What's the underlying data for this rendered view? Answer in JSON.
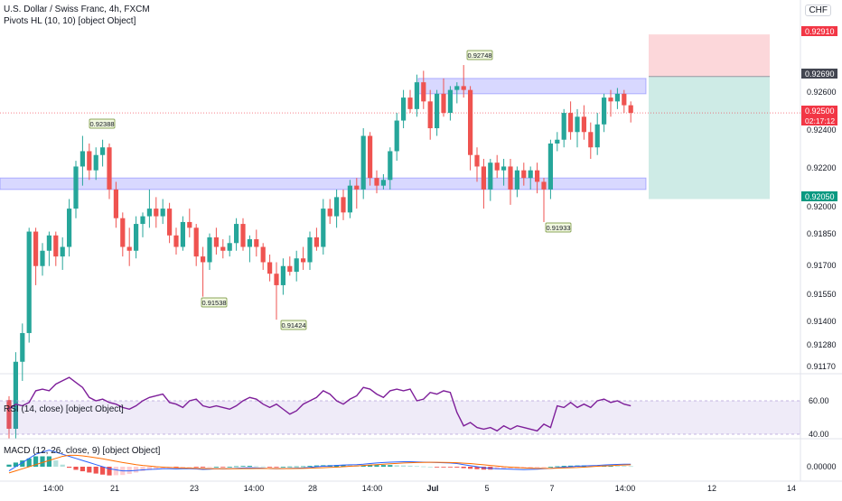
{
  "header": {
    "title": "U.S. Dollar / Swiss Franc, 4h, FXCM",
    "pivot_legend": "Pivots HL (10, 10) [object Object]",
    "currency": "CHF"
  },
  "indicators": {
    "rsi_legend": "RSI (14, close) [object Object]",
    "macd_legend": "MACD (12, 26, close, 9) [object Object]"
  },
  "chart_data": {
    "type": "candlestick",
    "price_axis": {
      "ticks": [
        "0.92690",
        "0.92600",
        "0.92500",
        "0.92400",
        "0.92200",
        "0.92050",
        "0.92000",
        "0.91850",
        "0.91700",
        "0.91550",
        "0.91400",
        "0.91280",
        "0.91170"
      ],
      "highlight_labels": [
        {
          "value": "0.92910",
          "color": "#f23645"
        },
        {
          "value": "0.92690",
          "color": "#434651"
        },
        {
          "value": "0.92500",
          "color": "#f23645",
          "countdown": "02:17:12"
        },
        {
          "value": "0.92050",
          "color": "#089981"
        }
      ]
    },
    "time_axis": {
      "labels": [
        "14:00",
        "21",
        "23",
        "14:00",
        "28",
        "14:00",
        "Jul",
        "5",
        "7",
        "14:00",
        "12",
        "14"
      ]
    },
    "pivot_labels": [
      "0.92388",
      "0.91538",
      "0.91424",
      "0.92748",
      "0.91933"
    ],
    "zones": {
      "resistance": {
        "from": 0.926,
        "to": 0.9268
      },
      "support": {
        "from": 0.921,
        "to": 0.9216
      }
    },
    "position": {
      "entry": 0.9269,
      "stop": 0.9291,
      "target": 0.9205,
      "stop_color": "#f23645",
      "target_color": "#089981"
    },
    "current_price": 0.925,
    "candles": [
      [
        0.91,
        0.9102,
        0.908,
        0.9085
      ],
      [
        0.9085,
        0.9125,
        0.908,
        0.912
      ],
      [
        0.912,
        0.914,
        0.911,
        0.9135
      ],
      [
        0.9135,
        0.919,
        0.913,
        0.9188
      ],
      [
        0.9188,
        0.919,
        0.916,
        0.917
      ],
      [
        0.917,
        0.9182,
        0.9165,
        0.9178
      ],
      [
        0.9178,
        0.9188,
        0.917,
        0.9186
      ],
      [
        0.9186,
        0.9188,
        0.917,
        0.9175
      ],
      [
        0.9175,
        0.9185,
        0.9168,
        0.918
      ],
      [
        0.918,
        0.9205,
        0.9175,
        0.92
      ],
      [
        0.92,
        0.9225,
        0.9195,
        0.9222
      ],
      [
        0.9222,
        0.9238,
        0.9212,
        0.923
      ],
      [
        0.923,
        0.9234,
        0.9215,
        0.922
      ],
      [
        0.922,
        0.9232,
        0.9215,
        0.9228
      ],
      [
        0.9228,
        0.9236,
        0.9222,
        0.9232
      ],
      [
        0.9232,
        0.9234,
        0.9205,
        0.921
      ],
      [
        0.921,
        0.9214,
        0.919,
        0.9195
      ],
      [
        0.9195,
        0.9198,
        0.9175,
        0.918
      ],
      [
        0.918,
        0.919,
        0.917,
        0.9178
      ],
      [
        0.9178,
        0.9196,
        0.9174,
        0.9192
      ],
      [
        0.9192,
        0.9198,
        0.9185,
        0.9196
      ],
      [
        0.9196,
        0.921,
        0.919,
        0.92
      ],
      [
        0.92,
        0.9206,
        0.919,
        0.9196
      ],
      [
        0.9196,
        0.9205,
        0.9192,
        0.92
      ],
      [
        0.92,
        0.9203,
        0.9182,
        0.9186
      ],
      [
        0.9186,
        0.919,
        0.9176,
        0.918
      ],
      [
        0.918,
        0.9196,
        0.9178,
        0.9193
      ],
      [
        0.9193,
        0.92,
        0.9185,
        0.919
      ],
      [
        0.919,
        0.9192,
        0.917,
        0.9175
      ],
      [
        0.9175,
        0.918,
        0.9154,
        0.9172
      ],
      [
        0.9172,
        0.9187,
        0.9168,
        0.9185
      ],
      [
        0.9185,
        0.919,
        0.9176,
        0.918
      ],
      [
        0.918,
        0.9184,
        0.9174,
        0.9178
      ],
      [
        0.9178,
        0.9186,
        0.9175,
        0.9182
      ],
      [
        0.9182,
        0.9195,
        0.9178,
        0.9192
      ],
      [
        0.9192,
        0.9195,
        0.9178,
        0.918
      ],
      [
        0.918,
        0.9186,
        0.9172,
        0.9184
      ],
      [
        0.9184,
        0.9189,
        0.9175,
        0.918
      ],
      [
        0.918,
        0.9182,
        0.9168,
        0.9172
      ],
      [
        0.9172,
        0.9176,
        0.9162,
        0.9166
      ],
      [
        0.9166,
        0.9172,
        0.9142,
        0.916
      ],
      [
        0.916,
        0.9174,
        0.9155,
        0.917
      ],
      [
        0.917,
        0.9175,
        0.9165,
        0.9167
      ],
      [
        0.9167,
        0.9178,
        0.9162,
        0.9174
      ],
      [
        0.9174,
        0.918,
        0.9168,
        0.9172
      ],
      [
        0.9172,
        0.9188,
        0.9168,
        0.9185
      ],
      [
        0.9185,
        0.919,
        0.9178,
        0.918
      ],
      [
        0.918,
        0.9205,
        0.9176,
        0.92
      ],
      [
        0.92,
        0.9205,
        0.9192,
        0.9196
      ],
      [
        0.9196,
        0.921,
        0.919,
        0.9206
      ],
      [
        0.9206,
        0.921,
        0.9194,
        0.9198
      ],
      [
        0.9198,
        0.9215,
        0.9195,
        0.9212
      ],
      [
        0.9212,
        0.9216,
        0.92,
        0.921
      ],
      [
        0.921,
        0.9242,
        0.9205,
        0.9238
      ],
      [
        0.9238,
        0.924,
        0.9212,
        0.9216
      ],
      [
        0.9216,
        0.922,
        0.9208,
        0.9212
      ],
      [
        0.9212,
        0.9218,
        0.921,
        0.9215
      ],
      [
        0.9215,
        0.9232,
        0.921,
        0.923
      ],
      [
        0.923,
        0.925,
        0.9225,
        0.9246
      ],
      [
        0.9246,
        0.9262,
        0.9242,
        0.9258
      ],
      [
        0.9258,
        0.9262,
        0.925,
        0.9252
      ],
      [
        0.9252,
        0.927,
        0.9248,
        0.9266
      ],
      [
        0.9266,
        0.9272,
        0.9252,
        0.9256
      ],
      [
        0.9256,
        0.9262,
        0.9236,
        0.9242
      ],
      [
        0.9242,
        0.9262,
        0.9238,
        0.926
      ],
      [
        0.926,
        0.9268,
        0.9248,
        0.925
      ],
      [
        0.925,
        0.9264,
        0.9246,
        0.9262
      ],
      [
        0.9262,
        0.9266,
        0.9255,
        0.9264
      ],
      [
        0.9264,
        0.9275,
        0.9258,
        0.9262
      ],
      [
        0.9262,
        0.9264,
        0.922,
        0.9228
      ],
      [
        0.9228,
        0.9232,
        0.9214,
        0.9222
      ],
      [
        0.9222,
        0.9226,
        0.92,
        0.921
      ],
      [
        0.921,
        0.9226,
        0.9204,
        0.9224
      ],
      [
        0.9224,
        0.9228,
        0.9216,
        0.922
      ],
      [
        0.922,
        0.9226,
        0.9212,
        0.9222
      ],
      [
        0.9222,
        0.9226,
        0.9202,
        0.921
      ],
      [
        0.921,
        0.9222,
        0.9206,
        0.922
      ],
      [
        0.922,
        0.9224,
        0.9212,
        0.9216
      ],
      [
        0.9216,
        0.9222,
        0.921,
        0.922
      ],
      [
        0.922,
        0.9224,
        0.9208,
        0.9214
      ],
      [
        0.9214,
        0.9216,
        0.9193,
        0.921
      ],
      [
        0.921,
        0.9236,
        0.9205,
        0.9234
      ],
      [
        0.9234,
        0.924,
        0.923,
        0.9236
      ],
      [
        0.9236,
        0.9252,
        0.9232,
        0.925
      ],
      [
        0.925,
        0.9256,
        0.9236,
        0.924
      ],
      [
        0.924,
        0.9252,
        0.9232,
        0.9248
      ],
      [
        0.9248,
        0.9254,
        0.9236,
        0.924
      ],
      [
        0.924,
        0.9245,
        0.9226,
        0.9232
      ],
      [
        0.9232,
        0.925,
        0.9228,
        0.9244
      ],
      [
        0.9244,
        0.926,
        0.924,
        0.9258
      ],
      [
        0.9258,
        0.9262,
        0.9248,
        0.9256
      ],
      [
        0.9256,
        0.9263,
        0.9252,
        0.926
      ],
      [
        0.926,
        0.9262,
        0.925,
        0.9254
      ],
      [
        0.9254,
        0.9256,
        0.9245,
        0.925
      ]
    ],
    "rsi": {
      "ticks": [
        "60.00",
        "40.00"
      ],
      "values": [
        55,
        58,
        57,
        59,
        66,
        67,
        66,
        70,
        72,
        74,
        71,
        68,
        62,
        60,
        61,
        59,
        58,
        56,
        55,
        57,
        60,
        62,
        63,
        64,
        59,
        58,
        56,
        60,
        61,
        57,
        56,
        57,
        56,
        55,
        57,
        60,
        62,
        61,
        58,
        56,
        58,
        55,
        52,
        54,
        58,
        60,
        62,
        66,
        64,
        60,
        58,
        61,
        63,
        68,
        67,
        64,
        62,
        66,
        67,
        66,
        67,
        60,
        61,
        65,
        64,
        66,
        65,
        53,
        45,
        47,
        44,
        43,
        44,
        42,
        45,
        43,
        45,
        44,
        43,
        42,
        46,
        44,
        57,
        56,
        59,
        56,
        58,
        56,
        60,
        61,
        59,
        60,
        58,
        57
      ]
    },
    "macd": {
      "ticks": [
        "0.00000"
      ],
      "macd": [
        -2,
        0,
        2,
        4,
        6,
        7,
        8,
        7,
        6,
        5,
        4,
        3,
        2,
        1,
        0,
        -1,
        -1.5,
        -2,
        -2,
        -1.8,
        -1.5,
        -1.3,
        -1.2,
        -1,
        -1,
        -1.1,
        -1,
        -1,
        -1.1,
        -1.3,
        -1.2,
        -1,
        -1.1,
        -1,
        -0.8,
        -0.6,
        -0.5,
        -0.6,
        -0.7,
        -0.9,
        -1,
        -0.9,
        -0.8,
        -0.7,
        -0.6,
        -0.3,
        0,
        0.2,
        0.4,
        0.6,
        0.8,
        0.9,
        1,
        1.2,
        1.5,
        1.8,
        2,
        2.2,
        2.3,
        2.4,
        2.4,
        2.3,
        2.2,
        2.1,
        2,
        1.9,
        1.8,
        1.5,
        1,
        0.5,
        0,
        -0.5,
        -0.8,
        -1,
        -1.1,
        -1.2,
        -1.3,
        -1.4,
        -1.3,
        -1.2,
        -1,
        -0.8,
        -0.5,
        -0.2,
        0,
        0.2,
        0.4,
        0.5,
        0.6,
        0.8,
        1,
        1.1,
        1.2,
        1.2
      ],
      "signal": [
        -3,
        -2,
        -1,
        0,
        1,
        2,
        3,
        4,
        5,
        5.5,
        5.5,
        5.2,
        4.8,
        4.3,
        3.8,
        3.2,
        2.6,
        2,
        1.5,
        1,
        0.6,
        0.3,
        0,
        -0.2,
        -0.4,
        -0.5,
        -0.6,
        -0.7,
        -0.8,
        -0.9,
        -0.95,
        -1,
        -1,
        -1,
        -1,
        -0.95,
        -0.9,
        -0.85,
        -0.85,
        -0.85,
        -0.9,
        -0.9,
        -0.9,
        -0.85,
        -0.8,
        -0.7,
        -0.6,
        -0.5,
        -0.35,
        -0.2,
        0,
        0.2,
        0.4,
        0.6,
        0.8,
        1,
        1.2,
        1.4,
        1.6,
        1.8,
        1.9,
        2,
        2.05,
        2.1,
        2.1,
        2.05,
        2,
        1.9,
        1.7,
        1.5,
        1.2,
        0.9,
        0.6,
        0.3,
        0,
        -0.2,
        -0.4,
        -0.6,
        -0.7,
        -0.8,
        -0.8,
        -0.8,
        -0.7,
        -0.6,
        -0.5,
        -0.4,
        -0.2,
        0,
        0.2,
        0.4,
        0.5,
        0.7,
        0.8,
        0.9
      ]
    }
  }
}
